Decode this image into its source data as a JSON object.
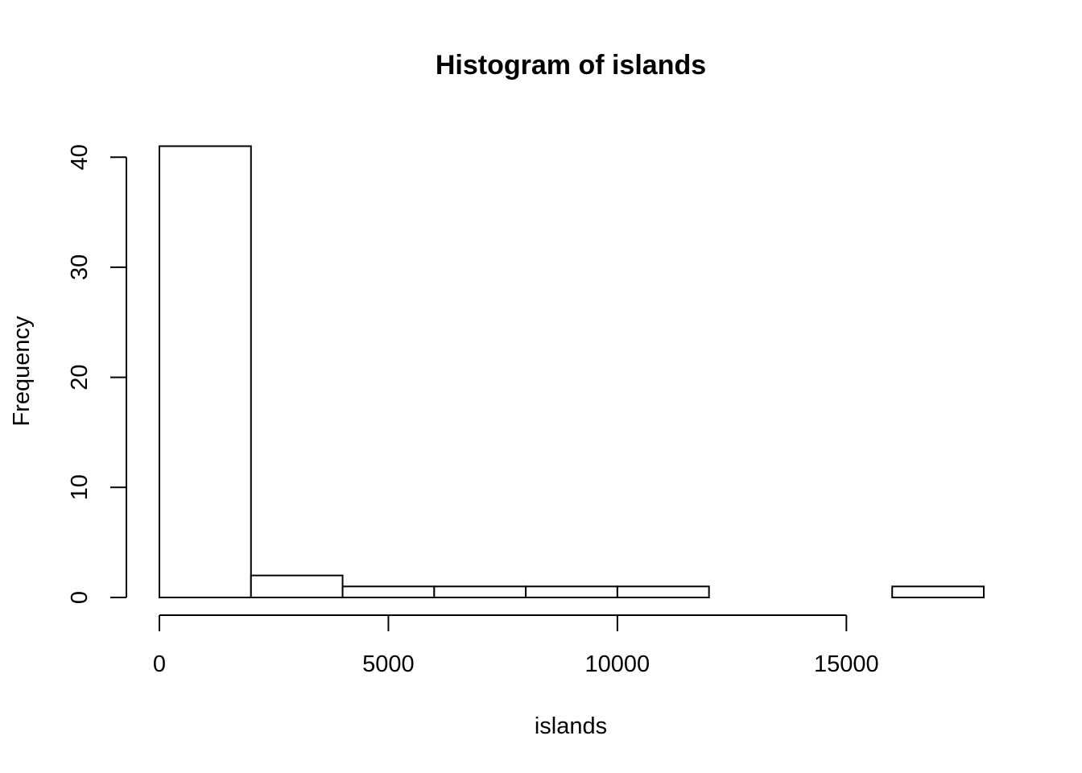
{
  "chart_data": {
    "type": "bar",
    "title": "Histogram of islands",
    "xlabel": "islands",
    "ylabel": "Frequency",
    "bins": [
      {
        "start": 0,
        "end": 2000,
        "count": 41
      },
      {
        "start": 2000,
        "end": 4000,
        "count": 2
      },
      {
        "start": 4000,
        "end": 6000,
        "count": 1
      },
      {
        "start": 6000,
        "end": 8000,
        "count": 1
      },
      {
        "start": 8000,
        "end": 10000,
        "count": 1
      },
      {
        "start": 10000,
        "end": 12000,
        "count": 1
      },
      {
        "start": 12000,
        "end": 14000,
        "count": 0
      },
      {
        "start": 14000,
        "end": 16000,
        "count": 0
      },
      {
        "start": 16000,
        "end": 18000,
        "count": 1
      }
    ],
    "xticks": [
      0,
      5000,
      10000,
      15000
    ],
    "yticks": [
      0,
      10,
      20,
      30,
      40
    ],
    "xlim": [
      0,
      18000
    ],
    "ylim": [
      0,
      41
    ],
    "grid": false,
    "bar_fill": "#ffffff",
    "bar_stroke": "#000000"
  }
}
